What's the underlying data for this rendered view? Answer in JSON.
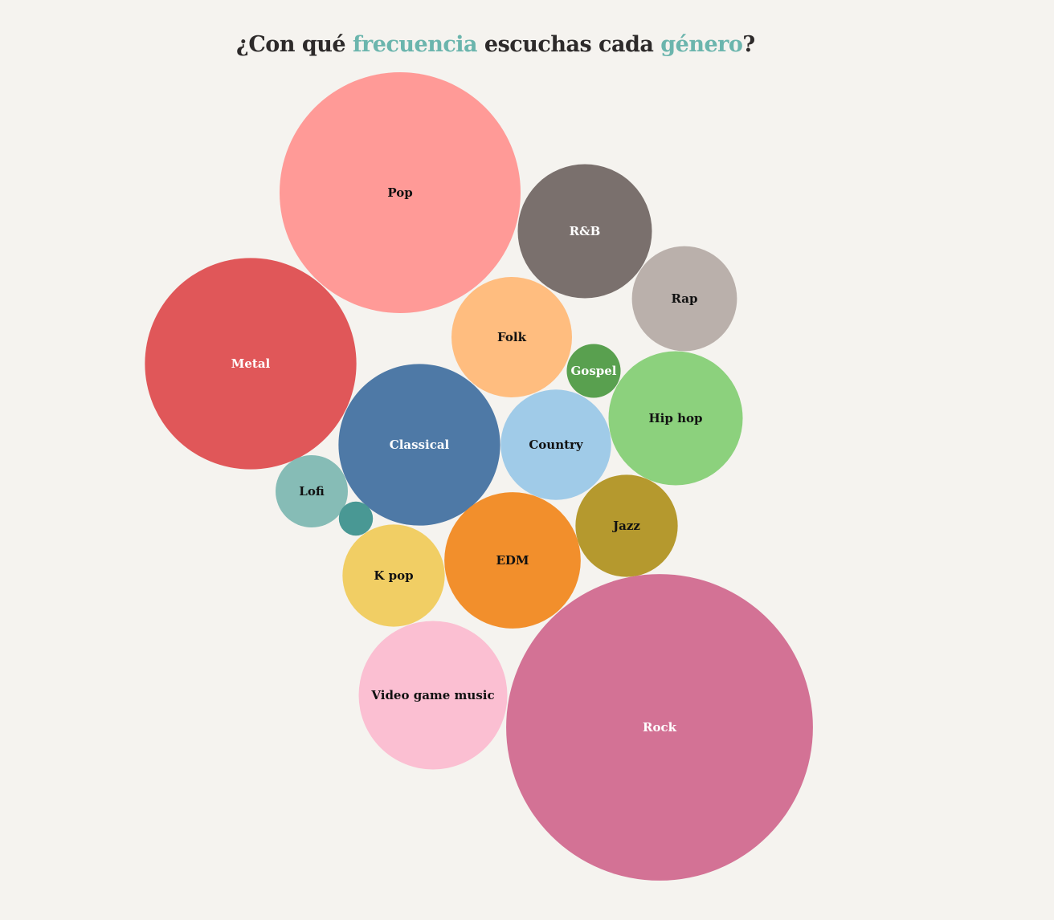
{
  "title": {
    "parts": [
      {
        "text": "¿Con qué ",
        "highlight": false
      },
      {
        "text": "frecuencia",
        "highlight": true
      },
      {
        "text": " escuchas cada ",
        "highlight": false
      },
      {
        "text": "género",
        "highlight": true
      },
      {
        "text": "?",
        "highlight": false
      }
    ],
    "highlight_color": "#6bb5ad"
  },
  "chart_data": {
    "type": "bubble",
    "title": "¿Con qué frecuencia escuchas cada género?",
    "legend": false,
    "series": [
      {
        "name": "Pop",
        "value": 100,
        "color": "#ff9a97",
        "label_color": "#111111"
      },
      {
        "name": "R&B",
        "value": 31,
        "color": "#7a706d",
        "label_color": "#ffffff"
      },
      {
        "name": "Rap",
        "value": 19,
        "color": "#bab0ab",
        "label_color": "#111111"
      },
      {
        "name": "Metal",
        "value": 77,
        "color": "#e05759",
        "label_color": "#ffffff"
      },
      {
        "name": "Folk",
        "value": 25,
        "color": "#ffbd7f",
        "label_color": "#111111"
      },
      {
        "name": "Gospel",
        "value": 5,
        "color": "#59a04f",
        "label_color": "#ffffff"
      },
      {
        "name": "Hip hop",
        "value": 31,
        "color": "#8cd17d",
        "label_color": "#111111"
      },
      {
        "name": "Classical",
        "value": 45,
        "color": "#4e79a6",
        "label_color": "#ffffff"
      },
      {
        "name": "Country",
        "value": 21,
        "color": "#a0cbe8",
        "label_color": "#111111"
      },
      {
        "name": "Lofi",
        "value": 9,
        "color": "#86bcb6",
        "label_color": "#111111"
      },
      {
        "name": "",
        "value": 2,
        "color": "#499894",
        "label_color": "#ffffff"
      },
      {
        "name": "Jazz",
        "value": 18,
        "color": "#b5992e",
        "label_color": "#111111"
      },
      {
        "name": "K pop",
        "value": 18,
        "color": "#f1ce64",
        "label_color": "#111111"
      },
      {
        "name": "EDM",
        "value": 32,
        "color": "#f28f2c",
        "label_color": "#111111"
      },
      {
        "name": "Video game music",
        "value": 38,
        "color": "#fbbfd2",
        "label_color": "#111111"
      },
      {
        "name": "Rock",
        "value": 162,
        "color": "#d37295",
        "label_color": "#ffffff"
      }
    ]
  }
}
